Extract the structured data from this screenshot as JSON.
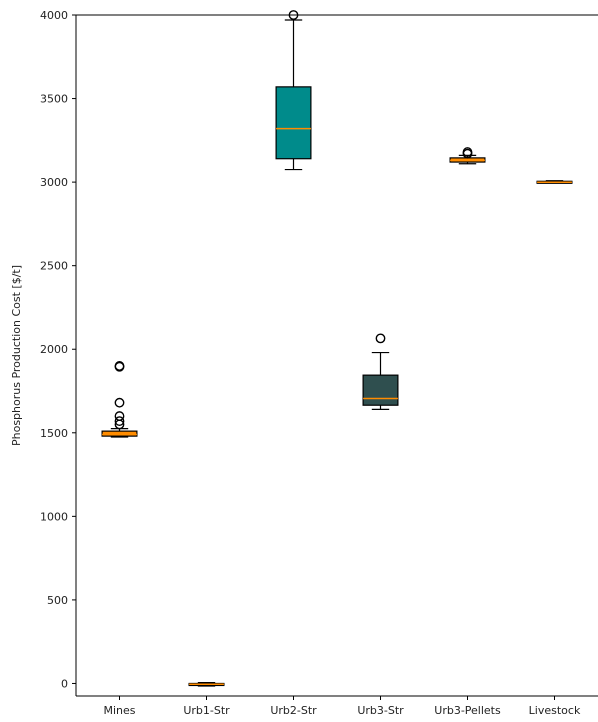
{
  "chart_data": {
    "type": "boxplot",
    "title": "",
    "xlabel": "",
    "ylabel": "Phosphorus Production Cost [$/t]",
    "ylim": [
      -75,
      4000
    ],
    "yticks": [
      0,
      500,
      1000,
      1500,
      2000,
      2500,
      3000,
      3500,
      4000
    ],
    "categories": [
      "Mines",
      "Urb1-Str",
      "Urb2-Str",
      "Urb3-Str",
      "Urb3-Pellets",
      "Livestock"
    ],
    "boxes": [
      {
        "category": "Mines",
        "whisker_low": 1475,
        "q1": 1480,
        "median": 1490,
        "q3": 1510,
        "whisker_high": 1525,
        "fliers": [
          1550,
          1570,
          1600,
          1680,
          1895,
          1900
        ],
        "color": "#ff8c00"
      },
      {
        "category": "Urb1-Str",
        "whisker_low": -15,
        "q1": -8,
        "median": -5,
        "q3": 0,
        "whisker_high": 5,
        "fliers": [],
        "color": "#ff8c00"
      },
      {
        "category": "Urb2-Str",
        "whisker_low": 3075,
        "q1": 3140,
        "median": 3320,
        "q3": 3570,
        "whisker_high": 3970,
        "fliers": [
          4000
        ],
        "color": "#008b8b"
      },
      {
        "category": "Urb3-Str",
        "whisker_low": 1640,
        "q1": 1665,
        "median": 1705,
        "q3": 1845,
        "whisker_high": 1980,
        "fliers": [
          2065
        ],
        "color": "#2f4f4f"
      },
      {
        "category": "Urb3-Pellets",
        "whisker_low": 3110,
        "q1": 3120,
        "median": 3130,
        "q3": 3145,
        "whisker_high": 3160,
        "fliers": [
          3170,
          3180
        ],
        "color": "#ff8c00"
      },
      {
        "category": "Livestock",
        "whisker_low": 2998,
        "q1": 2998,
        "median": 2999,
        "q3": 3005,
        "whisker_high": 3008,
        "fliers": [],
        "color": "#ff8c00"
      }
    ],
    "grid": false,
    "legend": "none"
  },
  "colors": {
    "median": "#ff8c00",
    "edge": "#000000"
  }
}
